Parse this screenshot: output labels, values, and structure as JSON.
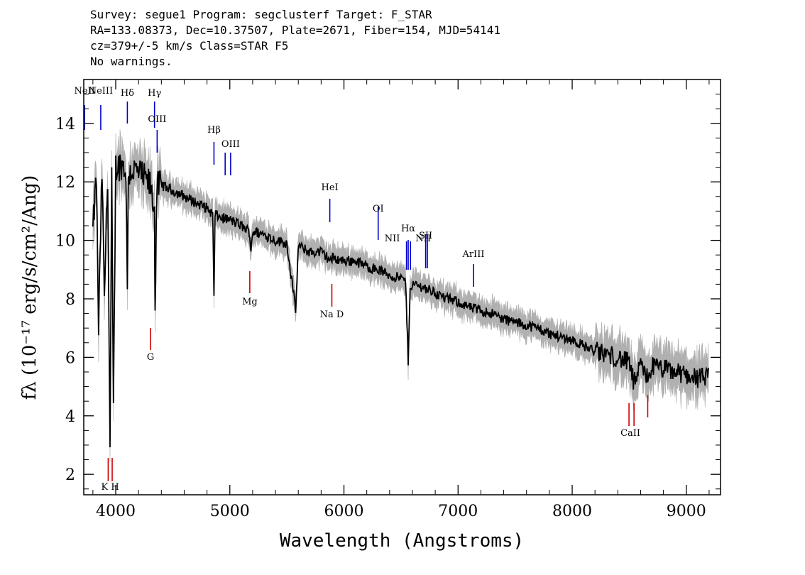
{
  "header": {
    "line1": "Survey: segue1 Program: segclusterf Target: F_STAR",
    "line2": "RA=133.08373, Dec=10.37507, Plate=2671, Fiber=154, MJD=54141",
    "line3": "cz=379+/-5 km/s Class=STAR F5",
    "line4": "No warnings."
  },
  "chart_data": {
    "type": "line",
    "xlabel": "Wavelength (Angstroms)",
    "ylabel": "fλ (10⁻¹⁷ erg/s/cm²/Ang)",
    "xlim": [
      3720,
      9300
    ],
    "ylim": [
      1.3,
      15.5
    ],
    "xticks": [
      4000,
      5000,
      6000,
      7000,
      8000,
      9000
    ],
    "yticks": [
      2,
      4,
      6,
      8,
      10,
      12,
      14
    ],
    "series": [
      {
        "color": "#000000",
        "x": [
          3800,
          3830,
          3850,
          3880,
          3900,
          3930,
          3950,
          3965,
          3980,
          4000,
          4050,
          4090,
          4102,
          4110,
          4150,
          4200,
          4250,
          4300,
          4340,
          4345,
          4360,
          4400,
          4500,
          4600,
          4700,
          4800,
          4850,
          4861,
          4870,
          4900,
          5000,
          5100,
          5170,
          5185,
          5200,
          5300,
          5400,
          5500,
          5577,
          5600,
          5700,
          5800,
          5890,
          5900,
          6000,
          6100,
          6200,
          6300,
          6400,
          6500,
          6540,
          6563,
          6580,
          6600,
          6700,
          6800,
          6900,
          7000,
          7100,
          7200,
          7300,
          7400,
          7500,
          7600,
          7700,
          7800,
          7900,
          8000,
          8100,
          8200,
          8300,
          8400,
          8500,
          8542,
          8600,
          8662,
          8700,
          8800,
          8900,
          9000,
          9100,
          9200
        ],
        "y": [
          10.3,
          12.2,
          7.0,
          12.4,
          8.0,
          12.3,
          2.8,
          12.0,
          4.1,
          12.5,
          12.6,
          12.4,
          8.0,
          12.3,
          12.4,
          12.3,
          12.1,
          11.9,
          11.0,
          7.6,
          11.8,
          11.9,
          11.7,
          11.5,
          11.3,
          11.1,
          10.9,
          8.0,
          10.9,
          10.8,
          10.7,
          10.5,
          10.3,
          9.7,
          10.3,
          10.2,
          10.0,
          9.9,
          7.6,
          9.8,
          9.6,
          9.6,
          9.3,
          9.4,
          9.3,
          9.3,
          9.1,
          9.0,
          8.8,
          8.7,
          8.6,
          5.9,
          8.4,
          8.5,
          8.4,
          8.2,
          8.0,
          7.9,
          7.7,
          7.6,
          7.5,
          7.3,
          7.2,
          7.1,
          7.0,
          6.8,
          6.7,
          6.6,
          6.4,
          6.2,
          6.1,
          6.0,
          5.8,
          5.1,
          5.7,
          5.3,
          5.7,
          5.6,
          5.5,
          5.4,
          5.3,
          5.3
        ]
      }
    ],
    "emission_lines": [
      {
        "label": "NeII",
        "x": 3727
      },
      {
        "label": "NeIII",
        "x": 3869
      },
      {
        "label": "Hδ",
        "x": 4102
      },
      {
        "label": "Hγ",
        "x": 4340
      },
      {
        "label": "OIII",
        "x": 4363
      },
      {
        "label": "Hβ",
        "x": 4861
      },
      {
        "label": "OIII",
        "x": 4959
      },
      {
        "label": "OIII",
        "x": 5007
      },
      {
        "label": "HeI",
        "x": 5876
      },
      {
        "label": "OI",
        "x": 6300
      },
      {
        "label": "NII",
        "x": 6548
      },
      {
        "label": "Hα",
        "x": 6563
      },
      {
        "label": "NII",
        "x": 6583
      },
      {
        "label": "SII",
        "x": 6716
      },
      {
        "label": "SII",
        "x": 6731
      },
      {
        "label": "ArIII",
        "x": 7135
      }
    ],
    "absorption_lines": [
      {
        "label": "K",
        "x": 3934
      },
      {
        "label": "H",
        "x": 3969
      },
      {
        "label": "G",
        "x": 4305
      },
      {
        "label": "Mg",
        "x": 5175
      },
      {
        "label": "Na D",
        "x": 5894
      },
      {
        "label": "CaII",
        "x": 8498
      },
      {
        "label": "CaII",
        "x": 8542
      },
      {
        "label": "CaII",
        "x": 8662
      }
    ],
    "colors": {
      "emission": "#0000cc",
      "absorption": "#cc0000",
      "error": "#b0b0b0",
      "spectrum": "#000000"
    }
  }
}
